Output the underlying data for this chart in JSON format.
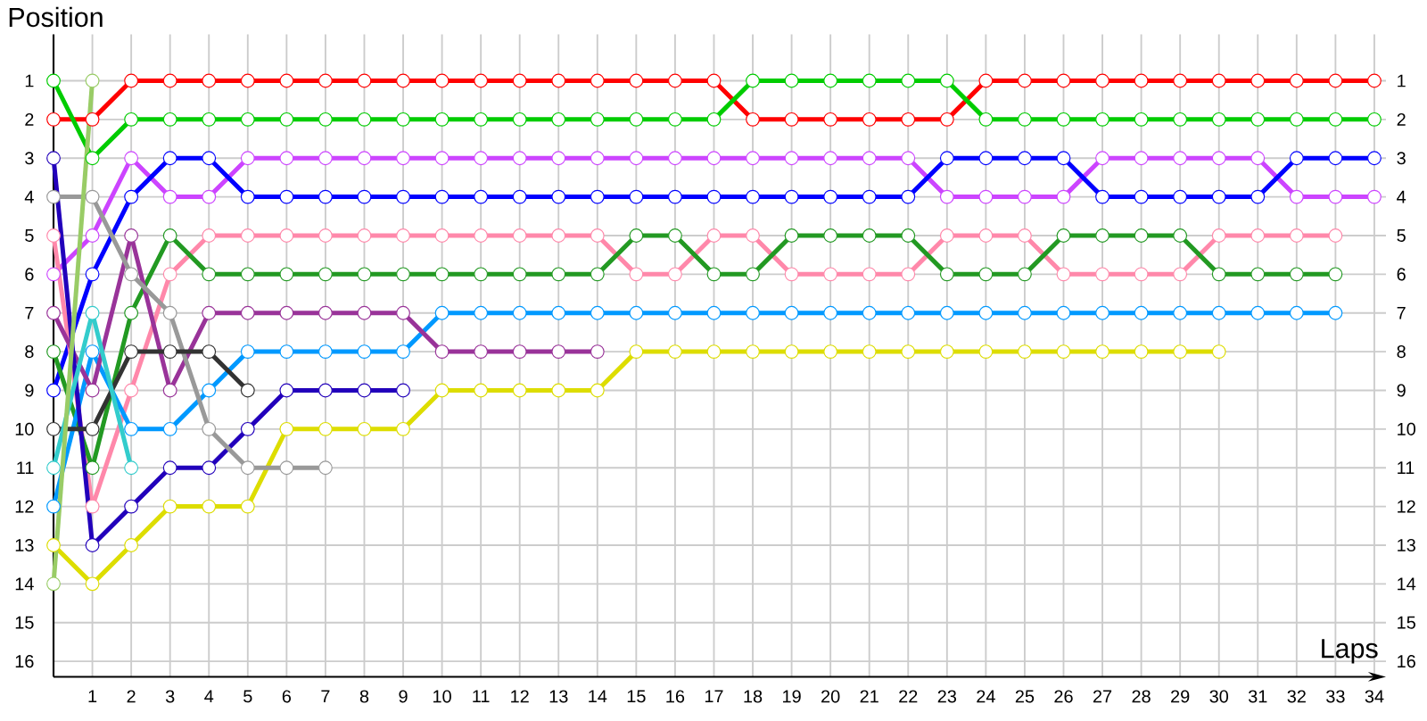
{
  "chart_data": {
    "type": "line",
    "xlabel": "Laps",
    "ylabel": "Position",
    "x": [
      0,
      1,
      2,
      3,
      4,
      5,
      6,
      7,
      8,
      9,
      10,
      11,
      12,
      13,
      14,
      15,
      16,
      17,
      18,
      19,
      20,
      21,
      22,
      23,
      24,
      25,
      26,
      27,
      28,
      29,
      30,
      31,
      32,
      33,
      34
    ],
    "xlim": [
      0,
      34.3
    ],
    "ylim": [
      16.4,
      -0.2
    ],
    "xticks": [
      1,
      2,
      3,
      4,
      5,
      6,
      7,
      8,
      9,
      10,
      11,
      12,
      13,
      14,
      15,
      16,
      17,
      18,
      19,
      20,
      21,
      22,
      23,
      24,
      25,
      26,
      27,
      28,
      29,
      30,
      31,
      32,
      33,
      34
    ],
    "yticks": [
      1,
      2,
      3,
      4,
      5,
      6,
      7,
      8,
      9,
      10,
      11,
      12,
      13,
      14,
      15,
      16
    ],
    "y2lim": [
      16.4,
      -0.2
    ],
    "y2ticks": [
      1,
      2,
      3,
      4,
      5,
      6,
      7,
      8,
      9,
      10,
      11,
      12,
      13,
      14,
      15,
      16
    ],
    "grid": true,
    "marker": "circle",
    "line_style": "solid",
    "series": [
      {
        "color": "#ff0000",
        "values": [
          2,
          2,
          1,
          1,
          1,
          1,
          1,
          1,
          1,
          1,
          1,
          1,
          1,
          1,
          1,
          1,
          1,
          1,
          2,
          2,
          2,
          2,
          2,
          2,
          1,
          1,
          1,
          1,
          1,
          1,
          1,
          1,
          1,
          1,
          1
        ]
      },
      {
        "color": "#00cc00",
        "values": [
          1,
          3,
          2,
          2,
          2,
          2,
          2,
          2,
          2,
          2,
          2,
          2,
          2,
          2,
          2,
          2,
          2,
          2,
          1,
          1,
          1,
          1,
          1,
          1,
          2,
          2,
          2,
          2,
          2,
          2,
          2,
          2,
          2,
          2,
          2
        ]
      },
      {
        "color": "#cc44ff",
        "values": [
          6,
          5,
          3,
          4,
          4,
          3,
          3,
          3,
          3,
          3,
          3,
          3,
          3,
          3,
          3,
          3,
          3,
          3,
          3,
          3,
          3,
          3,
          3,
          4,
          4,
          4,
          4,
          3,
          3,
          3,
          3,
          3,
          4,
          4,
          4
        ]
      },
      {
        "color": "#0000ff",
        "values": [
          9,
          6,
          4,
          3,
          3,
          4,
          4,
          4,
          4,
          4,
          4,
          4,
          4,
          4,
          4,
          4,
          4,
          4,
          4,
          4,
          4,
          4,
          4,
          3,
          3,
          3,
          3,
          4,
          4,
          4,
          4,
          4,
          3,
          3,
          3
        ]
      },
      {
        "color": "#ff88aa",
        "values": [
          5,
          12,
          9,
          6,
          5,
          5,
          5,
          5,
          5,
          5,
          5,
          5,
          5,
          5,
          5,
          6,
          6,
          5,
          5,
          6,
          6,
          6,
          6,
          5,
          5,
          5,
          6,
          6,
          6,
          6,
          5,
          5,
          5,
          5,
          null
        ]
      },
      {
        "color": "#229922",
        "values": [
          8,
          11,
          7,
          5,
          6,
          6,
          6,
          6,
          6,
          6,
          6,
          6,
          6,
          6,
          6,
          5,
          5,
          6,
          6,
          5,
          5,
          5,
          5,
          6,
          6,
          6,
          5,
          5,
          5,
          5,
          6,
          6,
          6,
          6,
          null
        ]
      },
      {
        "color": "#0099ff",
        "values": [
          12,
          8,
          10,
          10,
          9,
          8,
          8,
          8,
          8,
          8,
          7,
          7,
          7,
          7,
          7,
          7,
          7,
          7,
          7,
          7,
          7,
          7,
          7,
          7,
          7,
          7,
          7,
          7,
          7,
          7,
          7,
          7,
          7,
          7,
          null
        ]
      },
      {
        "color": "#993399",
        "values": [
          7,
          9,
          5,
          9,
          7,
          7,
          7,
          7,
          7,
          7,
          8,
          8,
          8,
          8,
          8,
          null,
          null,
          null,
          null,
          null,
          null,
          null,
          null,
          null,
          null,
          null,
          null,
          null,
          null,
          null,
          null,
          null,
          null,
          null,
          null
        ]
      },
      {
        "color": "#2200bb",
        "values": [
          3,
          13,
          12,
          11,
          11,
          10,
          9,
          9,
          9,
          9,
          null,
          null,
          null,
          null,
          null,
          null,
          null,
          null,
          null,
          null,
          null,
          null,
          null,
          null,
          null,
          null,
          null,
          null,
          null,
          null,
          null,
          null,
          null,
          null,
          null
        ]
      },
      {
        "color": "#dddd00",
        "values": [
          13,
          14,
          13,
          12,
          12,
          12,
          10,
          10,
          10,
          10,
          9,
          9,
          9,
          9,
          9,
          8,
          8,
          8,
          8,
          8,
          8,
          8,
          8,
          8,
          8,
          8,
          8,
          8,
          8,
          8,
          8,
          null,
          null,
          null,
          null
        ]
      },
      {
        "color": "#999999",
        "values": [
          4,
          4,
          6,
          7,
          10,
          11,
          11,
          11,
          null,
          null,
          null,
          null,
          null,
          null,
          null,
          null,
          null,
          null,
          null,
          null,
          null,
          null,
          null,
          null,
          null,
          null,
          null,
          null,
          null,
          null,
          null,
          null,
          null,
          null,
          null
        ]
      },
      {
        "color": "#333333",
        "values": [
          10,
          10,
          8,
          8,
          8,
          9,
          null,
          null,
          null,
          null,
          null,
          null,
          null,
          null,
          null,
          null,
          null,
          null,
          null,
          null,
          null,
          null,
          null,
          null,
          null,
          null,
          null,
          null,
          null,
          null,
          null,
          null,
          null,
          null,
          null
        ]
      },
      {
        "color": "#33cccc",
        "values": [
          11,
          7,
          11,
          null,
          null,
          null,
          null,
          null,
          null,
          null,
          null,
          null,
          null,
          null,
          null,
          null,
          null,
          null,
          null,
          null,
          null,
          null,
          null,
          null,
          null,
          null,
          null,
          null,
          null,
          null,
          null,
          null,
          null,
          null,
          null
        ]
      },
      {
        "color": "#99cc66",
        "values": [
          14,
          1,
          null,
          null,
          null,
          null,
          null,
          null,
          null,
          null,
          null,
          null,
          null,
          null,
          null,
          null,
          null,
          null,
          null,
          null,
          null,
          null,
          null,
          null,
          null,
          null,
          null,
          null,
          null,
          null,
          null,
          null,
          null,
          null,
          null
        ]
      }
    ]
  }
}
